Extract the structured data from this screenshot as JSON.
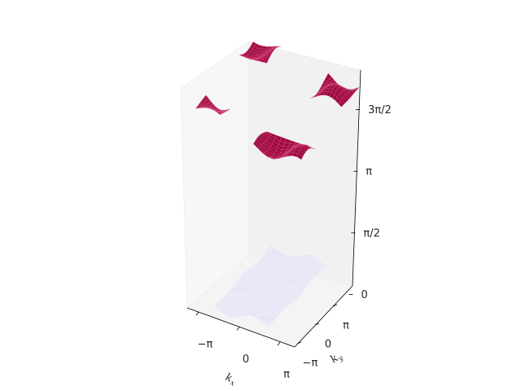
{
  "chart_data": {
    "type": "surface",
    "projection": "3d",
    "title": "",
    "xlabel": {
      "base": "k",
      "sub": "x"
    },
    "ylabel": {
      "base": "k",
      "sub": "y"
    },
    "zlabel": "",
    "x_ticks": [
      "−π",
      "0",
      "π"
    ],
    "y_ticks": [
      "−π",
      "0",
      "π"
    ],
    "z_ticks": [
      "0",
      "π/2",
      "π",
      "3π/2"
    ],
    "xlim": [
      -3.1416,
      3.1416
    ],
    "ylim": [
      -3.1416,
      3.1416
    ],
    "zlim": [
      -0.3,
      5.2
    ],
    "grid": false,
    "colors": {
      "upper_band": "#9c0a3f",
      "upper_band_mesh": "#e0508a",
      "lower_band": "#ece8f7",
      "pane_left": "#f7f7f7",
      "pane_back": "#f1f1f1",
      "pane_floor": "#f4f4f4"
    },
    "series": [
      {
        "surfaces": [
          {
            "x": [
              -3.1,
              -1.7
            ],
            "y": [
              -3.1,
              -2.0
            ],
            "z": [
              4.6,
              5.0
            ]
          },
          {
            "x": [
              -3.1,
              -1.5
            ],
            "y": [
              1.6,
              3.1
            ],
            "z": [
              4.8,
              5.2
            ]
          },
          {
            "x": [
              0.3,
              3.1
            ],
            "y": [
              -3.1,
              -1.6
            ],
            "z": [
              4.1,
              4.6
            ]
          },
          {
            "x": [
              1.3,
              3.1
            ],
            "y": [
              1.2,
              3.1
            ],
            "z": [
              4.5,
              5.0
            ]
          }
        ]
      },
      {
        "surfaces": [
          {
            "x": [
              -1.6,
              1.6
            ],
            "y": [
              -3.1,
              3.1
            ],
            "z": [
              -0.25,
              0.2
            ]
          }
        ]
      }
    ]
  }
}
